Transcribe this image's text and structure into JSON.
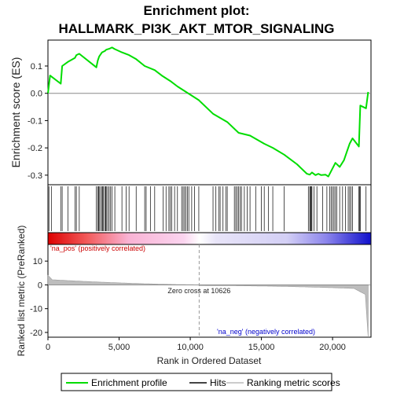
{
  "chart_data": {
    "type": "line",
    "title_line1": "Enrichment plot:",
    "title_line2": "HALLMARK_PI3K_AKT_MTOR_SIGNALING",
    "es_panel": {
      "ylabel": "Enrichment score (ES)",
      "ylim": [
        -0.335,
        0.195
      ],
      "yticks": [
        0.1,
        0.0,
        -0.1,
        -0.2,
        -0.3
      ],
      "ytick_labels": [
        "0.1",
        "0.0",
        "-0.1",
        "-0.2",
        "-0.3"
      ],
      "x": [
        0,
        150,
        900,
        1000,
        1400,
        1900,
        2000,
        2200,
        3400,
        3500,
        3600,
        3800,
        4000,
        4100,
        4300,
        4500,
        4700,
        5200,
        5700,
        6200,
        6800,
        7500,
        8000,
        8600,
        9100,
        10600,
        11600,
        12600,
        13400,
        14200,
        15200,
        15800,
        16600,
        17500,
        18200,
        18400,
        18550,
        18800,
        19000,
        19200,
        19500,
        19700,
        19850,
        20000,
        20200,
        20500,
        20800,
        21000,
        21200,
        21400,
        21850,
        21950,
        22350,
        22500
      ],
      "y": [
        0.0,
        0.065,
        0.035,
        0.1,
        0.115,
        0.13,
        0.14,
        0.145,
        0.095,
        0.12,
        0.135,
        0.15,
        0.155,
        0.16,
        0.163,
        0.168,
        0.162,
        0.15,
        0.14,
        0.125,
        0.1,
        0.085,
        0.065,
        0.045,
        0.025,
        -0.025,
        -0.075,
        -0.105,
        -0.145,
        -0.155,
        -0.185,
        -0.2,
        -0.225,
        -0.26,
        -0.295,
        -0.298,
        -0.29,
        -0.3,
        -0.295,
        -0.3,
        -0.298,
        -0.305,
        -0.29,
        -0.275,
        -0.255,
        -0.27,
        -0.245,
        -0.215,
        -0.185,
        -0.165,
        -0.195,
        -0.045,
        -0.055,
        0.005
      ],
      "color": "#00dd00"
    },
    "hits": [
      70,
      240,
      900,
      1000,
      1400,
      1900,
      2000,
      2200,
      3400,
      3500,
      3550,
      3600,
      3700,
      3800,
      3850,
      3900,
      4000,
      4050,
      4100,
      4200,
      4300,
      4400,
      4500,
      4700,
      5200,
      5500,
      5700,
      6200,
      6800,
      6900,
      7200,
      7500,
      8100,
      8300,
      8500,
      8600,
      8700,
      8900,
      9100,
      9400,
      9500,
      9600,
      9700,
      9800,
      9900,
      10100,
      10300,
      10600,
      11600,
      11800,
      12000,
      12100,
      12300,
      12500,
      12600,
      13100,
      13200,
      13300,
      13400,
      13500,
      13600,
      13800,
      14000,
      14200,
      14600,
      15000,
      15200,
      15500,
      15800,
      16600,
      18300,
      18400,
      18450,
      18500,
      18550,
      18700,
      18900,
      19300,
      19600,
      19800,
      19900,
      20000,
      20100,
      20200,
      20300,
      20500,
      20700,
      20900,
      21100,
      21200,
      21300,
      21400,
      21850,
      21900,
      21950,
      22350
    ],
    "metric_panel": {
      "ylabel": "Ranked list metric (PreRanked)",
      "ylim": [
        -22,
        17
      ],
      "yticks": [
        10,
        0,
        -10,
        -20
      ],
      "ytick_labels": [
        "10",
        "0",
        "-10",
        "-20"
      ]
    },
    "xlabel": "Rank in Ordered Dataset",
    "xlim": [
      0,
      22700
    ],
    "xticks": [
      0,
      5000,
      10000,
      15000,
      20000
    ],
    "xtick_labels": [
      "0",
      "5,000",
      "10,000",
      "15,000",
      "20,000"
    ],
    "zero_cross_rank": 10626,
    "zero_cross_label": "Zero cross at 10626",
    "pos_label": "'na_pos' (positively correlated)",
    "neg_label": "'na_neg' (negatively correlated)",
    "legend": [
      {
        "label": "Enrichment profile",
        "color": "#00dd00"
      },
      {
        "label": "Hits",
        "color": "#444444"
      },
      {
        "label": "Ranking metric scores",
        "color": "#cccccc"
      }
    ],
    "pos_color": "#cc0000",
    "neg_color": "#0000cc"
  }
}
